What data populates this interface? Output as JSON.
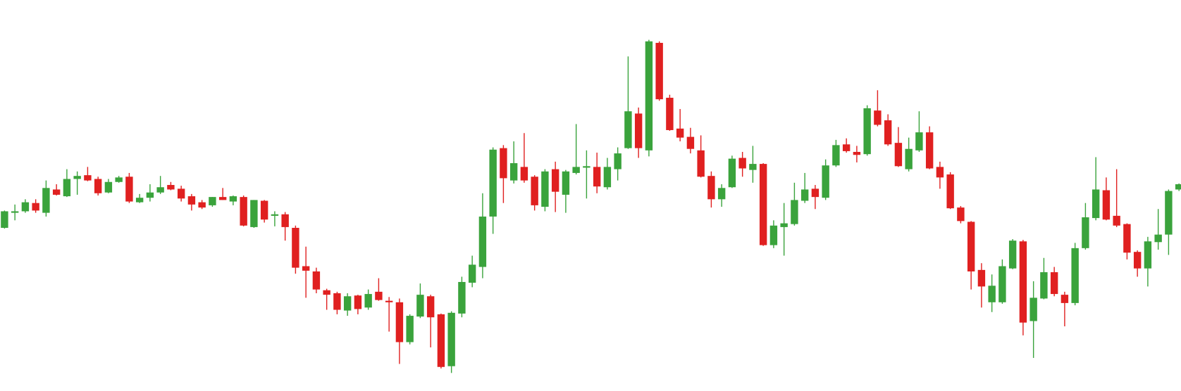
{
  "chart_data": {
    "type": "candlestick",
    "up_color": "#3aa33c",
    "down_color": "#e02020",
    "ylim": [
      0,
      520
    ],
    "open": [
      217,
      237,
      239,
      250,
      237,
      268,
      259,
      282,
      287,
      282,
      264,
      278,
      285,
      251,
      257,
      264,
      274,
      269,
      259,
      251,
      247,
      258,
      252,
      258,
      218,
      253,
      233,
      235,
      217,
      166,
      159,
      134,
      130,
      107,
      127,
      111,
      132,
      120,
      118,
      65,
      99,
      126,
      102,
      33,
      103,
      144,
      165,
      232,
      323,
      280,
      298,
      285,
      245,
      295,
      261,
      290,
      297,
      298,
      271,
      295,
      323,
      369,
      320,
      463,
      390,
      349,
      338,
      320,
      286,
      255,
      271,
      310,
      294,
      302,
      194,
      218,
      222,
      253,
      269,
      257,
      300,
      328,
      318,
      315,
      373,
      360,
      330,
      295,
      320,
      344,
      298,
      288,
      244,
      225,
      161,
      118,
      118,
      163,
      199,
      93,
      123,
      158,
      128,
      117,
      190,
      230,
      267,
      233,
      222,
      185,
      163,
      198,
      208,
      268
    ],
    "high": [
      240,
      248,
      255,
      255,
      280,
      275,
      295,
      292,
      298,
      285,
      282,
      286,
      290,
      262,
      275,
      286,
      278,
      273,
      262,
      254,
      258,
      270,
      260,
      260,
      254,
      254,
      239,
      238,
      220,
      192,
      164,
      136,
      132,
      130,
      128,
      135,
      150,
      125,
      123,
      102,
      143,
      128,
      103,
      106,
      152,
      180,
      263,
      324,
      327,
      332,
      343,
      287,
      295,
      305,
      294,
      355,
      320,
      317,
      310,
      324,
      445,
      377,
      467,
      465,
      394,
      375,
      350,
      340,
      292,
      275,
      313,
      318,
      326,
      303,
      227,
      250,
      277,
      290,
      274,
      308,
      334,
      336,
      326,
      380,
      400,
      368,
      351,
      337,
      372,
      352,
      305,
      291,
      246,
      226,
      170,
      155,
      175,
      202,
      201,
      146,
      177,
      165,
      132,
      197,
      250,
      311,
      284,
      295,
      223,
      187,
      205,
      242,
      268,
      276
    ],
    "low": [
      216,
      227,
      237,
      237,
      232,
      260,
      258,
      261,
      279,
      260,
      263,
      277,
      250,
      250,
      252,
      262,
      267,
      252,
      240,
      242,
      245,
      254,
      247,
      219,
      217,
      224,
      219,
      200,
      156,
      124,
      130,
      108,
      102,
      100,
      102,
      108,
      120,
      79,
      36,
      62,
      97,
      58,
      30,
      24,
      98,
      138,
      150,
      209,
      250,
      276,
      277,
      240,
      239,
      238,
      237,
      288,
      256,
      263,
      268,
      280,
      322,
      310,
      312,
      386,
      346,
      332,
      316,
      284,
      244,
      245,
      270,
      285,
      277,
      193,
      190,
      180,
      220,
      250,
      242,
      254,
      298,
      317,
      304,
      313,
      352,
      326,
      298,
      292,
      318,
      295,
      269,
      242,
      223,
      135,
      111,
      105,
      116,
      162,
      74,
      44,
      122,
      126,
      86,
      114,
      188,
      227,
      227,
      218,
      175,
      152,
      139,
      188,
      181,
      266
    ],
    "close": [
      239,
      239,
      251,
      240,
      270,
      261,
      282,
      286,
      280,
      263,
      278,
      284,
      252,
      257,
      264,
      271,
      268,
      256,
      248,
      244,
      258,
      254,
      259,
      220,
      254,
      228,
      235,
      218,
      164,
      160,
      135,
      128,
      108,
      126,
      109,
      129,
      121,
      118,
      65,
      100,
      128,
      98,
      32,
      104,
      145,
      168,
      232,
      321,
      283,
      303,
      280,
      247,
      292,
      265,
      292,
      298,
      299,
      272,
      298,
      316,
      372,
      323,
      465,
      388,
      347,
      337,
      322,
      285,
      255,
      270,
      309,
      296,
      302,
      194,
      220,
      223,
      254,
      268,
      258,
      300,
      327,
      319,
      314,
      376,
      354,
      328,
      299,
      322,
      344,
      296,
      284,
      243,
      226,
      159,
      139,
      140,
      166,
      200,
      91,
      124,
      158,
      129,
      117,
      190,
      231,
      268,
      228,
      220,
      184,
      163,
      199,
      208,
      266,
      275
    ]
  }
}
